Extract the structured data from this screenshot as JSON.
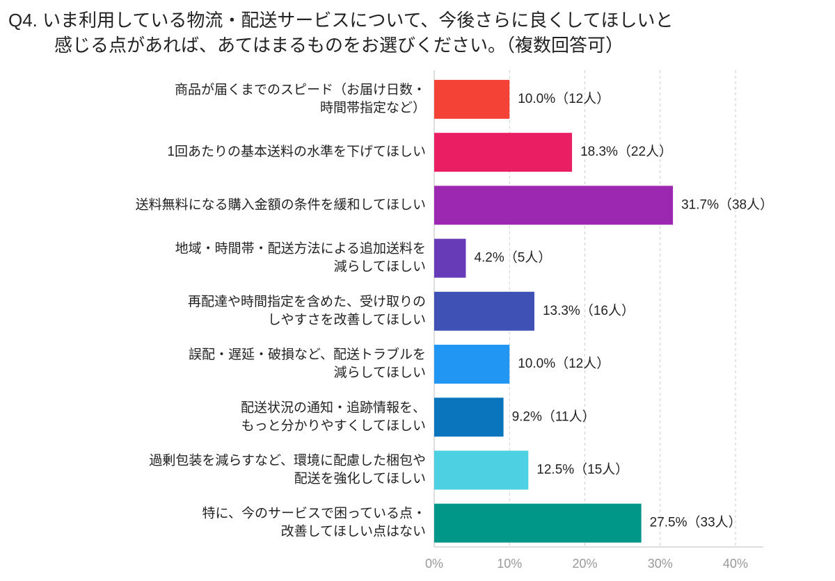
{
  "chart_data": {
    "type": "hbar",
    "title": [
      "Q4. いま利用している物流・配送サービスについて、今後さらに良くしてほしいと",
      "感じる点があれば、あてはまるものをお選びください。（複数回答可）"
    ],
    "categories": [
      [
        "商品が届くまでのスピード（お届け日数・",
        "時間帯指定など）"
      ],
      [
        "1回あたりの基本送料の水準を下げてほしい"
      ],
      [
        "送料無料になる購入金額の条件を緩和してほしい"
      ],
      [
        "地域・時間帯・配送方法による追加送料を",
        "減らしてほしい"
      ],
      [
        "再配達や時間指定を含めた、受け取りの",
        "しやすさを改善してほしい"
      ],
      [
        "誤配・遅延・破損など、配送トラブルを",
        "減らしてほしい"
      ],
      [
        "配送状況の通知・追跡情報を、",
        "もっと分かりやすくしてほしい"
      ],
      [
        "過剰包装を減らすなど、環境に配慮した梱包や",
        "配送を強化してほしい"
      ],
      [
        "特に、今のサービスで困っている点・",
        "改善してほしい点はない"
      ]
    ],
    "values": [
      10.0,
      18.3,
      31.7,
      4.2,
      13.3,
      10.0,
      9.2,
      12.5,
      27.5
    ],
    "value_labels": [
      "10.0%（12人）",
      "18.3%（22人）",
      "31.7%（38人）",
      "4.2%（5人）",
      "13.3%（16人）",
      "10.0%（12人）",
      "9.2%（11人）",
      "12.5%（15人）",
      "27.5%（33人）"
    ],
    "colors": [
      "#f44336",
      "#e91e63",
      "#9c27b0",
      "#673ab7",
      "#3f51b5",
      "#2196f3",
      "#0a74bd",
      "#4dd0e1",
      "#009688"
    ],
    "xlim": [
      0,
      43.7
    ],
    "xticks": [
      {
        "value": 0,
        "label": "0%"
      },
      {
        "value": 10,
        "label": "10%"
      },
      {
        "value": 20,
        "label": "20%"
      },
      {
        "value": 30,
        "label": "30%"
      },
      {
        "value": 40,
        "label": "40%"
      }
    ],
    "grid": true
  }
}
